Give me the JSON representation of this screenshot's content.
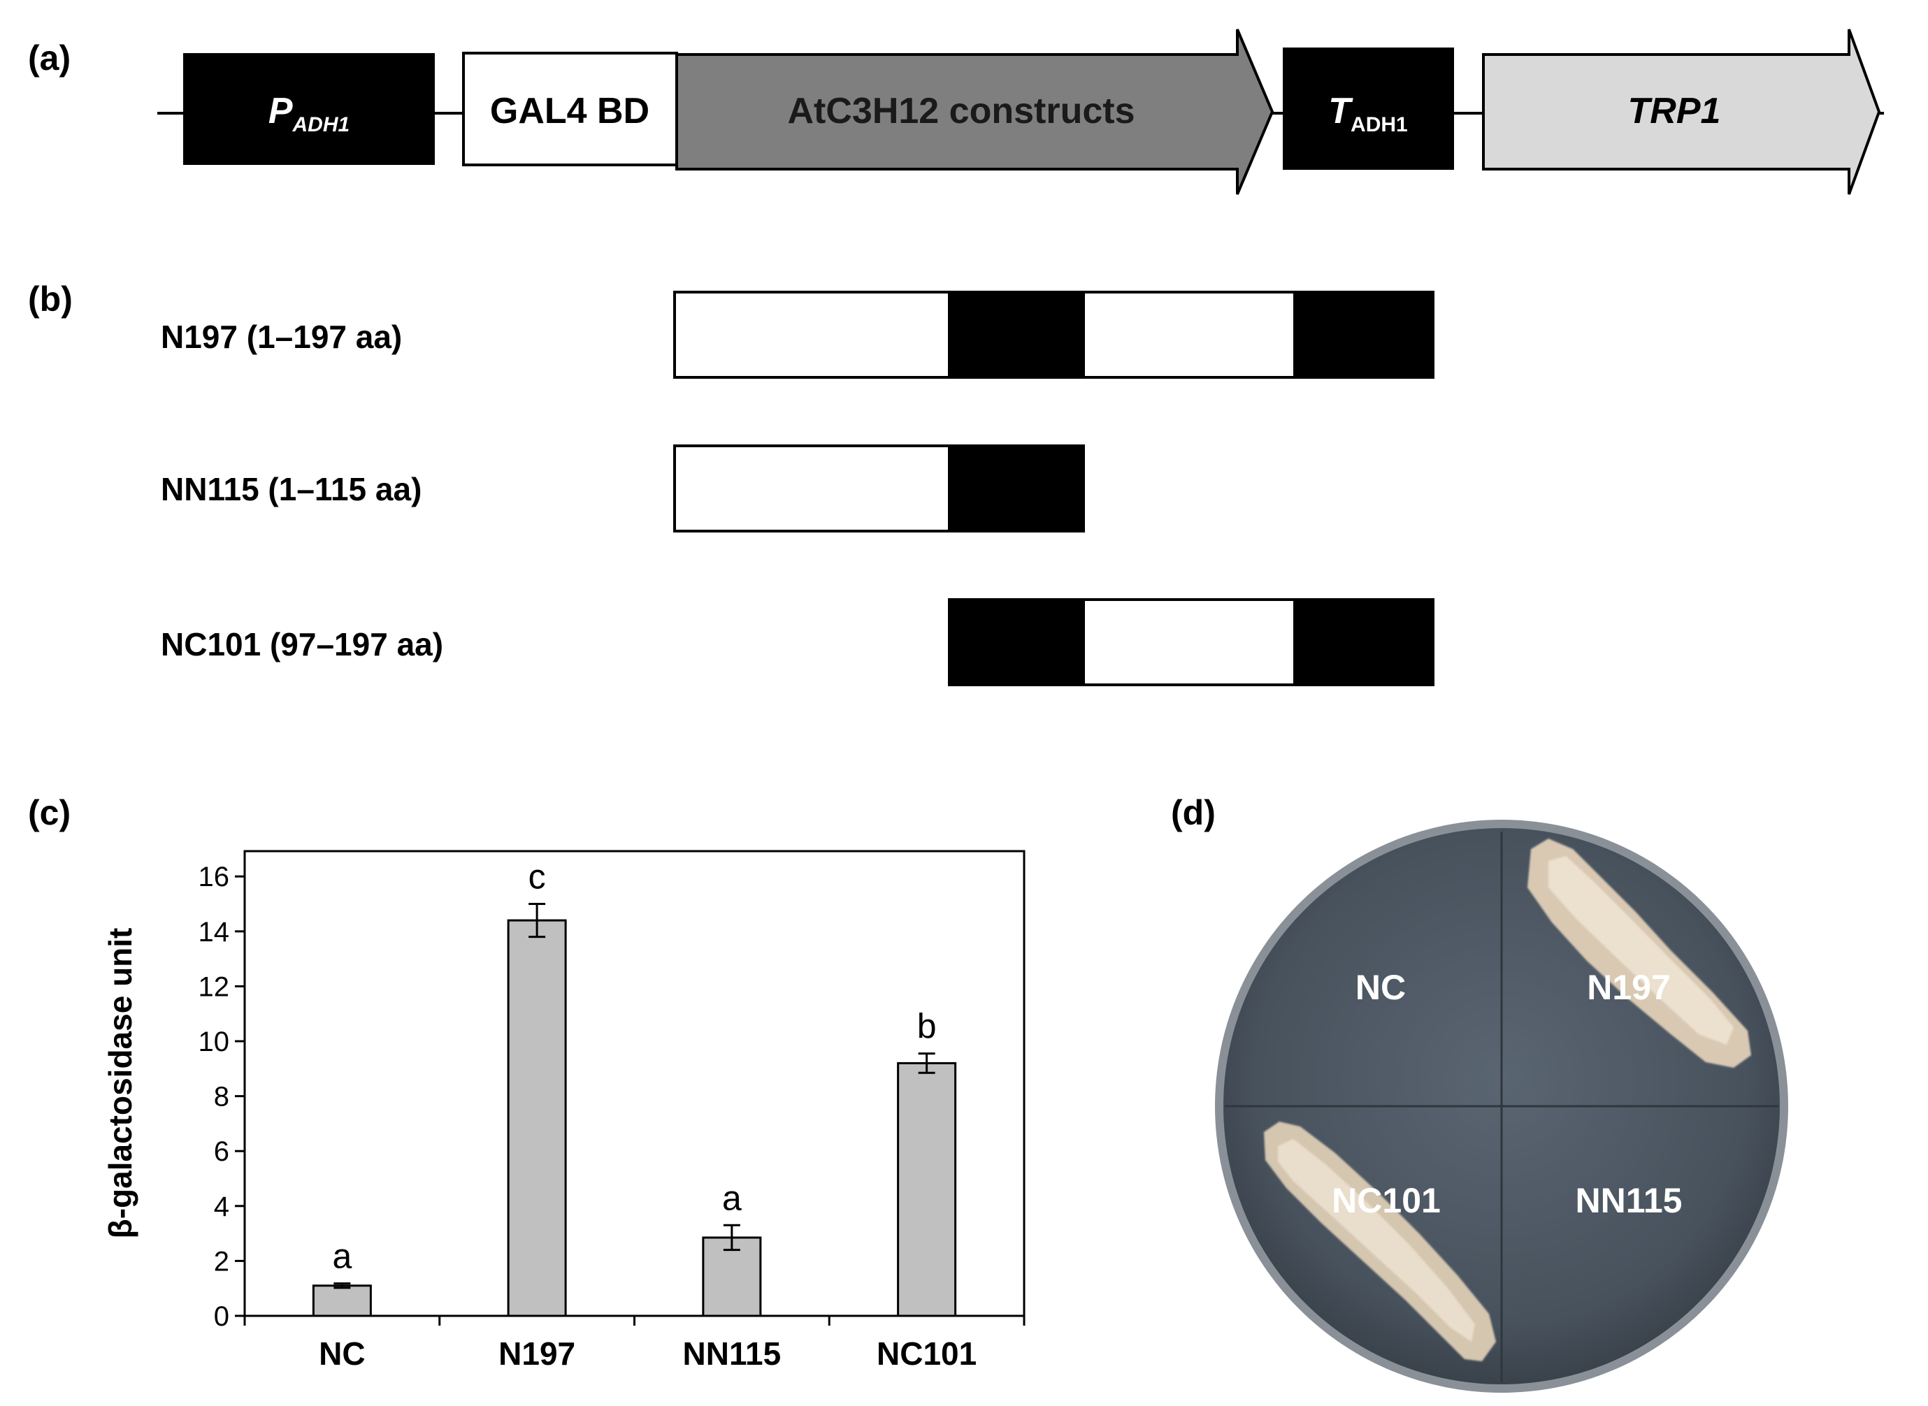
{
  "panels": {
    "a": "(a)",
    "b": "(b)",
    "c": "(c)",
    "d": "(d)"
  },
  "construct": {
    "p_main": "P",
    "p_sub": "ADH1",
    "gal4": "GAL4 BD",
    "atc3h12": "AtC3H12 constructs",
    "t_main": "T",
    "t_sub": "ADH1",
    "trp1": "TRP1"
  },
  "constructs_b": [
    {
      "label": "N197 (1–197 aa)"
    },
    {
      "label": "NN115 (1–115 aa)"
    },
    {
      "label": "NC101 (97–197 aa)"
    }
  ],
  "chart_data": {
    "type": "bar",
    "categories": [
      "NC",
      "N197",
      "NN115",
      "NC101"
    ],
    "values": [
      1.1,
      14.4,
      2.85,
      9.2
    ],
    "errors": [
      0.08,
      0.6,
      0.45,
      0.35
    ],
    "significance": [
      "a",
      "c",
      "a",
      "b"
    ],
    "ylabel": "β-galactosidase unit",
    "ylim": [
      0,
      17
    ],
    "yticks": [
      "0",
      "2",
      "4",
      "6",
      "8",
      "10",
      "12",
      "14",
      "16"
    ],
    "bar_color": "#c0c0c0",
    "grid": false
  },
  "plate": {
    "top_left": "NC",
    "top_right": "N197",
    "bottom_left": "NC101",
    "bottom_right": "NN115"
  }
}
